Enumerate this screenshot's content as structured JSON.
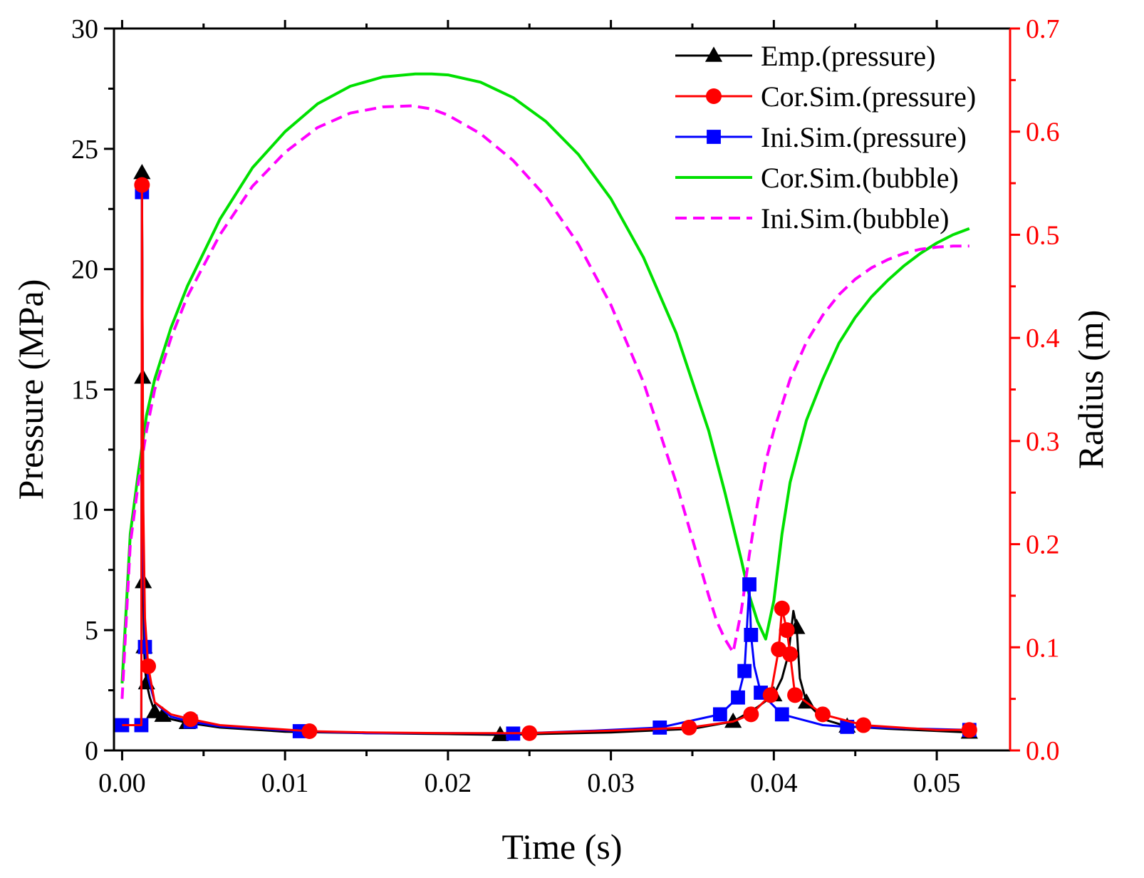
{
  "chart_data": {
    "type": "line",
    "title": "",
    "xlabel": "Time (s)",
    "ylabel": "Pressure (MPa)",
    "y2label": "Radius (m)",
    "xlim": [
      -0.0005,
      0.0545
    ],
    "ylim": [
      0,
      30
    ],
    "y2lim": [
      0,
      0.7
    ],
    "xticks": [
      0.0,
      0.01,
      0.02,
      0.03,
      0.04,
      0.05
    ],
    "xtick_labels": [
      "0.00",
      "0.01",
      "0.02",
      "0.03",
      "0.04",
      "0.05"
    ],
    "yticks": [
      0,
      5,
      10,
      15,
      20,
      25,
      30
    ],
    "ytick_labels": [
      "0",
      "5",
      "10",
      "15",
      "20",
      "25",
      "30"
    ],
    "y2ticks": [
      0.0,
      0.1,
      0.2,
      0.3,
      0.4,
      0.5,
      0.6,
      0.7
    ],
    "y2tick_labels": [
      "0.0",
      "0.1",
      "0.2",
      "0.3",
      "0.4",
      "0.5",
      "0.6",
      "0.7"
    ],
    "grid": false,
    "legend_position": "top-right",
    "colors": {
      "emp": "#000000",
      "cor_pressure": "#ff0000",
      "ini_pressure": "#0000ff",
      "cor_bubble": "#00e000",
      "ini_bubble": "#ff00ff",
      "right_axis": "#ff0000"
    },
    "series": [
      {
        "name": "Emp.(pressure)",
        "axis": "left",
        "color": "#000000",
        "marker": "triangle",
        "dash": "solid",
        "x": [
          0.0,
          0.00118,
          0.00122,
          0.00126,
          0.0013,
          0.00135,
          0.0014,
          0.0015,
          0.0017,
          0.002,
          0.0025,
          0.003,
          0.004,
          0.006,
          0.01,
          0.015,
          0.02,
          0.0232,
          0.03,
          0.035,
          0.0375,
          0.039,
          0.04,
          0.0405,
          0.0409,
          0.0412,
          0.0414,
          0.0416,
          0.042,
          0.043,
          0.0445,
          0.047,
          0.052
        ],
        "y": [
          1.05,
          1.05,
          24.0,
          15.5,
          7.0,
          4.3,
          3.4,
          2.8,
          2.2,
          1.6,
          1.45,
          1.3,
          1.15,
          0.95,
          0.78,
          0.72,
          0.68,
          0.65,
          0.75,
          0.9,
          1.2,
          1.8,
          2.3,
          3.0,
          4.0,
          5.8,
          5.1,
          3.0,
          2.0,
          1.3,
          1.0,
          0.9,
          0.75
        ],
        "markers": [
          [
            0.00122,
            24.0
          ],
          [
            0.00126,
            15.5
          ],
          [
            0.0013,
            7.0
          ],
          [
            0.00135,
            4.3
          ],
          [
            0.0015,
            2.8
          ],
          [
            0.002,
            1.6
          ],
          [
            0.0025,
            1.45
          ],
          [
            0.004,
            1.15
          ],
          [
            0.0232,
            0.65
          ],
          [
            0.0375,
            1.2
          ],
          [
            0.04,
            2.3
          ],
          [
            0.0414,
            5.1
          ],
          [
            0.042,
            2.0
          ],
          [
            0.0445,
            1.0
          ],
          [
            0.052,
            0.75
          ]
        ]
      },
      {
        "name": "Cor.Sim.(pressure)",
        "axis": "left",
        "color": "#ff0000",
        "marker": "circle",
        "dash": "solid",
        "x": [
          0.0,
          0.00118,
          0.00122,
          0.0013,
          0.0014,
          0.0016,
          0.002,
          0.003,
          0.0042,
          0.006,
          0.0115,
          0.015,
          0.02,
          0.025,
          0.03,
          0.0348,
          0.0375,
          0.0386,
          0.0398,
          0.0403,
          0.0405,
          0.0408,
          0.041,
          0.0413,
          0.0416,
          0.043,
          0.0455,
          0.05,
          0.052
        ],
        "y": [
          1.05,
          1.05,
          23.5,
          10.0,
          5.5,
          3.5,
          2.0,
          1.5,
          1.3,
          1.05,
          0.8,
          0.75,
          0.72,
          0.72,
          0.82,
          0.95,
          1.2,
          1.5,
          2.3,
          4.2,
          5.9,
          5.0,
          4.0,
          2.3,
          2.2,
          1.5,
          1.05,
          0.85,
          0.85
        ],
        "markers": [
          [
            0.00122,
            23.5
          ],
          [
            0.0016,
            3.5
          ],
          [
            0.0042,
            1.3
          ],
          [
            0.0115,
            0.8
          ],
          [
            0.025,
            0.72
          ],
          [
            0.0348,
            0.95
          ],
          [
            0.0386,
            1.5
          ],
          [
            0.0398,
            2.3
          ],
          [
            0.0403,
            4.2
          ],
          [
            0.0405,
            5.9
          ],
          [
            0.0408,
            5.0
          ],
          [
            0.041,
            4.0
          ],
          [
            0.0413,
            2.3
          ],
          [
            0.043,
            1.5
          ],
          [
            0.0455,
            1.05
          ],
          [
            0.052,
            0.85
          ]
        ]
      },
      {
        "name": "Ini.Sim.(pressure)",
        "axis": "left",
        "color": "#0000ff",
        "marker": "square",
        "dash": "solid",
        "x": [
          0.0,
          0.00118,
          0.00122,
          0.0013,
          0.0014,
          0.0016,
          0.002,
          0.003,
          0.0042,
          0.006,
          0.0109,
          0.015,
          0.02,
          0.024,
          0.029,
          0.033,
          0.0367,
          0.0378,
          0.0382,
          0.0385,
          0.0386,
          0.0388,
          0.0392,
          0.0405,
          0.043,
          0.0445,
          0.052
        ],
        "y": [
          1.05,
          1.05,
          23.2,
          9.0,
          4.3,
          3.0,
          2.0,
          1.4,
          1.2,
          1.0,
          0.8,
          0.72,
          0.72,
          0.7,
          0.82,
          0.95,
          1.5,
          2.2,
          3.3,
          6.9,
          4.8,
          3.5,
          2.4,
          1.5,
          1.05,
          0.98,
          0.85
        ],
        "markers": [
          [
            0.0,
            1.05
          ],
          [
            0.00118,
            1.05
          ],
          [
            0.00122,
            23.2
          ],
          [
            0.0014,
            4.3
          ],
          [
            0.0042,
            1.2
          ],
          [
            0.0109,
            0.8
          ],
          [
            0.024,
            0.7
          ],
          [
            0.033,
            0.95
          ],
          [
            0.0367,
            1.5
          ],
          [
            0.0378,
            2.2
          ],
          [
            0.0382,
            3.3
          ],
          [
            0.0385,
            6.9
          ],
          [
            0.0386,
            4.8
          ],
          [
            0.0392,
            2.4
          ],
          [
            0.0405,
            1.5
          ],
          [
            0.0445,
            0.98
          ],
          [
            0.052,
            0.85
          ]
        ]
      },
      {
        "name": "Cor.Sim.(bubble)",
        "axis": "right",
        "color": "#00e000",
        "marker": "none",
        "dash": "solid",
        "x": [
          0.0,
          0.0005,
          0.001,
          0.0015,
          0.002,
          0.003,
          0.004,
          0.006,
          0.008,
          0.01,
          0.012,
          0.014,
          0.016,
          0.018,
          0.019,
          0.02,
          0.022,
          0.024,
          0.026,
          0.028,
          0.03,
          0.032,
          0.034,
          0.036,
          0.037,
          0.038,
          0.0385,
          0.039,
          0.0395,
          0.04,
          0.0405,
          0.041,
          0.042,
          0.043,
          0.044,
          0.045,
          0.046,
          0.047,
          0.048,
          0.049,
          0.05,
          0.051,
          0.052
        ],
        "y": [
          0.065,
          0.21,
          0.27,
          0.325,
          0.36,
          0.41,
          0.45,
          0.515,
          0.565,
          0.6,
          0.627,
          0.644,
          0.653,
          0.656,
          0.656,
          0.655,
          0.648,
          0.633,
          0.61,
          0.578,
          0.535,
          0.478,
          0.405,
          0.31,
          0.25,
          0.185,
          0.15,
          0.125,
          0.108,
          0.145,
          0.21,
          0.26,
          0.32,
          0.36,
          0.395,
          0.42,
          0.44,
          0.456,
          0.47,
          0.482,
          0.492,
          0.5,
          0.506
        ]
      },
      {
        "name": "Ini.Sim.(bubble)",
        "axis": "right",
        "color": "#ff00ff",
        "marker": "none",
        "dash": "dashed",
        "x": [
          0.0,
          0.0005,
          0.001,
          0.0015,
          0.002,
          0.003,
          0.004,
          0.006,
          0.008,
          0.01,
          0.012,
          0.014,
          0.016,
          0.0178,
          0.019,
          0.02,
          0.022,
          0.024,
          0.026,
          0.028,
          0.03,
          0.032,
          0.034,
          0.035,
          0.036,
          0.0365,
          0.037,
          0.0375,
          0.038,
          0.0385,
          0.039,
          0.0395,
          0.04,
          0.041,
          0.042,
          0.043,
          0.044,
          0.045,
          0.046,
          0.047,
          0.048,
          0.049,
          0.05,
          0.051,
          0.052
        ],
        "y": [
          0.05,
          0.2,
          0.26,
          0.31,
          0.35,
          0.4,
          0.44,
          0.5,
          0.547,
          0.58,
          0.604,
          0.618,
          0.624,
          0.625,
          0.622,
          0.616,
          0.598,
          0.572,
          0.537,
          0.491,
          0.432,
          0.357,
          0.26,
          0.205,
          0.15,
          0.125,
          0.108,
          0.095,
          0.135,
          0.19,
          0.24,
          0.28,
          0.31,
          0.36,
          0.396,
          0.422,
          0.442,
          0.457,
          0.468,
          0.476,
          0.482,
          0.486,
          0.488,
          0.489,
          0.489
        ]
      }
    ]
  }
}
